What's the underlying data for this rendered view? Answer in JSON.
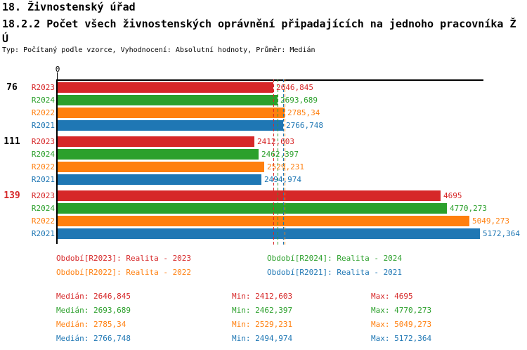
{
  "header": {
    "title": "18. Živnostenský úřad",
    "subtitle": "18.2.2 Počet všech živnostenských oprávnění připadajících na jednoho pracovníka ŽÚ",
    "meta": "Typ: Počítaný podle vzorce, Vyhodnocení: Absolutní hodnoty, Průměr: Medián"
  },
  "chart_data": {
    "type": "bar",
    "orientation": "horizontal",
    "origin_tick_label": "0",
    "xlim": [
      0,
      5220
    ],
    "grid": false,
    "legend_position": "below",
    "groups": [
      {
        "label": "76",
        "label_color": "#000000"
      },
      {
        "label": "111",
        "label_color": "#000000"
      },
      {
        "label": "139",
        "label_color": "#d62728"
      }
    ],
    "series": [
      {
        "name": "R2023",
        "color": "#d62728",
        "legend": "Období[R2023]: Realita - 2023",
        "values": [
          2646.845,
          2412.603,
          4695
        ],
        "value_labels": [
          "2646,845",
          "2412,603",
          "4695"
        ],
        "median": 2646.845,
        "stats": {
          "median": "2646,845",
          "min": "2412,603",
          "max": "4695"
        }
      },
      {
        "name": "R2024",
        "color": "#2ca02c",
        "legend": "Období[R2024]: Realita - 2024",
        "values": [
          2693.689,
          2462.397,
          4770.273
        ],
        "value_labels": [
          "2693,689",
          "2462,397",
          "4770,273"
        ],
        "median": 2693.689,
        "stats": {
          "median": "2693,689",
          "min": "2462,397",
          "max": "4770,273"
        }
      },
      {
        "name": "R2022",
        "color": "#ff7f0e",
        "legend": "Období[R2022]: Realita - 2022",
        "values": [
          2785.34,
          2529.231,
          5049.273
        ],
        "value_labels": [
          "2785,34",
          "2529,231",
          "5049,273"
        ],
        "median": 2785.34,
        "stats": {
          "median": "2785,34",
          "min": "2529,231",
          "max": "5049,273"
        }
      },
      {
        "name": "R2021",
        "color": "#1f77b4",
        "legend": "Období[R2021]: Realita - 2021",
        "values": [
          2766.748,
          2494.974,
          5172.364
        ],
        "value_labels": [
          "2766,748",
          "2494,974",
          "5172,364"
        ],
        "median": 2766.748,
        "stats": {
          "median": "2766,748",
          "min": "2494,974",
          "max": "5172,364"
        }
      }
    ],
    "stats_labels": {
      "median": "Medián",
      "min": "Min",
      "max": "Max"
    }
  }
}
